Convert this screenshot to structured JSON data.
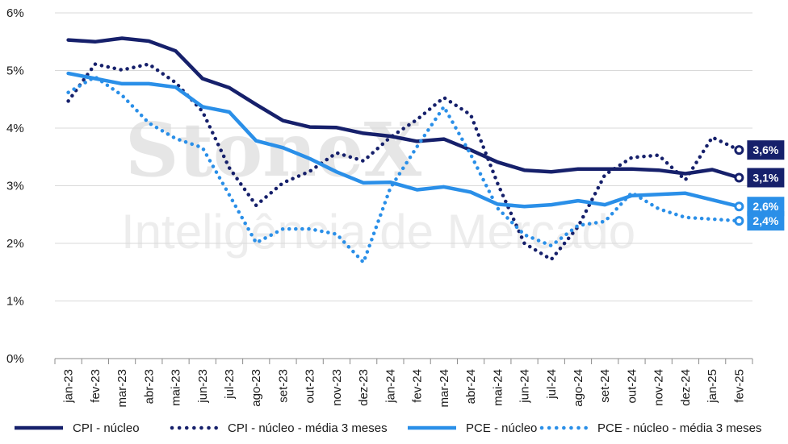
{
  "watermark": {
    "brand": "StoneX",
    "tagline": "Inteligência de Mercado"
  },
  "chart_data": {
    "type": "line",
    "categories": [
      "jan-23",
      "fev-23",
      "mar-23",
      "abr-23",
      "mai-23",
      "jun-23",
      "jul-23",
      "ago-23",
      "set-23",
      "out-23",
      "nov-23",
      "dez-23",
      "jan-24",
      "fev-24",
      "mar-24",
      "abr-24",
      "mai-24",
      "jun-24",
      "jul-24",
      "ago-24",
      "set-24",
      "out-24",
      "nov-24",
      "dez-24",
      "jan-25",
      "fev-25"
    ],
    "ylim": [
      0,
      6
    ],
    "yticks": [
      "0%",
      "1%",
      "2%",
      "3%",
      "4%",
      "5%",
      "6%"
    ],
    "grid": true,
    "legend_position": "bottom",
    "series": [
      {
        "name": "CPI - núcleo",
        "color": "#16206b",
        "style": "solid",
        "values": [
          5.53,
          5.5,
          5.56,
          5.51,
          5.34,
          4.86,
          4.7,
          4.41,
          4.13,
          4.02,
          4.01,
          3.91,
          3.86,
          3.77,
          3.81,
          3.62,
          3.41,
          3.27,
          3.24,
          3.29,
          3.29,
          3.29,
          3.27,
          3.21,
          3.28,
          3.14
        ],
        "end_label": "3,1%"
      },
      {
        "name": "CPI - núcleo - média 3 meses",
        "color": "#16206b",
        "style": "dotted",
        "values": [
          4.47,
          5.11,
          5.01,
          5.11,
          4.79,
          4.29,
          3.31,
          2.66,
          3.05,
          3.25,
          3.57,
          3.43,
          3.84,
          4.15,
          4.53,
          4.23,
          3.04,
          2.0,
          1.72,
          2.29,
          3.19,
          3.49,
          3.53,
          3.1,
          3.84,
          3.62
        ],
        "end_label": "3,6%"
      },
      {
        "name": "PCE - núcleo",
        "color": "#2a8fe8",
        "style": "solid",
        "values": [
          4.95,
          4.86,
          4.77,
          4.77,
          4.71,
          4.37,
          4.28,
          3.78,
          3.66,
          3.47,
          3.24,
          3.05,
          3.06,
          2.93,
          2.98,
          2.89,
          2.68,
          2.64,
          2.67,
          2.74,
          2.67,
          2.83,
          2.85,
          2.87,
          null,
          2.64
        ],
        "end_label": "2,6%"
      },
      {
        "name": "PCE - núcleo - média 3 meses",
        "color": "#2a8fe8",
        "style": "dotted",
        "values": [
          4.62,
          4.89,
          4.57,
          4.09,
          3.82,
          3.66,
          2.84,
          2.01,
          2.25,
          2.25,
          2.16,
          1.67,
          2.96,
          3.68,
          4.37,
          3.54,
          2.61,
          2.15,
          1.96,
          2.31,
          2.38,
          2.88,
          2.6,
          2.45,
          null,
          2.39
        ],
        "end_label": "2,4%"
      }
    ]
  }
}
